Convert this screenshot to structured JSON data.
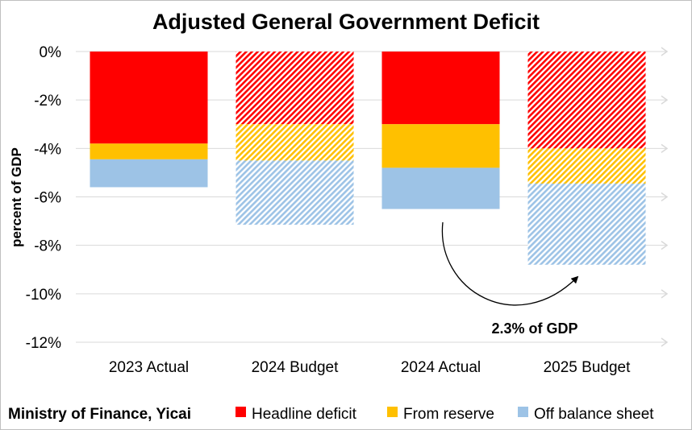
{
  "chart_data": {
    "type": "bar",
    "stacked": true,
    "title": "Adjusted General Government Deficit",
    "ylabel": "percent of GDP",
    "xlabel": "",
    "ylim": [
      -12,
      0
    ],
    "yticks": [
      0,
      -2,
      -4,
      -6,
      -8,
      -10,
      -12
    ],
    "ytick_labels": [
      "0%",
      "-2%",
      "-4%",
      "-6%",
      "-8%",
      "-10%",
      "-12%"
    ],
    "grid": true,
    "categories": [
      "2023 Actual",
      "2024 Budget",
      "2024 Actual",
      "2025 Budget"
    ],
    "hatched_categories": [
      false,
      true,
      false,
      true
    ],
    "series": [
      {
        "name": "Headline deficit",
        "color": "#ff0000",
        "values": [
          -3.8,
          -3.0,
          -3.0,
          -4.0
        ]
      },
      {
        "name": "From reserve",
        "color": "#ffc000",
        "values": [
          -0.65,
          -1.5,
          -1.8,
          -1.45
        ]
      },
      {
        "name": "Off balance sheet",
        "color": "#9dc3e6",
        "values": [
          -1.15,
          -2.65,
          -1.7,
          -3.35
        ]
      }
    ],
    "legend_position": "bottom",
    "annotation": {
      "text": "2.3% of GDP",
      "from_category": "2024 Actual",
      "to_category": "2025 Budget"
    },
    "source": "Ministry of Finance, Yicai"
  }
}
